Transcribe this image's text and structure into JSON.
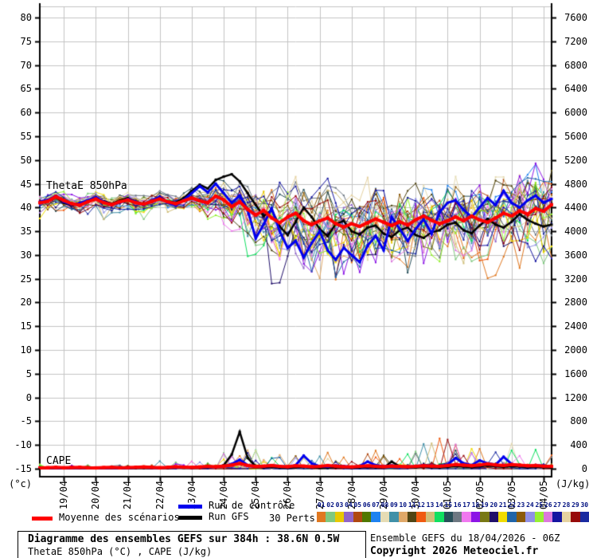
{
  "chart_data": {
    "type": "line",
    "title": "Diagramme des ensembles GEFS sur 384h : 38.6N 0.5W",
    "subtitle": "ThetaE 850hPa (°C) , CAPE (J/kg)",
    "annotations": {
      "thetae_label": "ThetaE 850hPa",
      "cape_label": "CAPE"
    },
    "grid": true,
    "x_axis": {
      "dates": [
        "19/04",
        "20/04",
        "21/04",
        "22/04",
        "23/04",
        "24/04",
        "25/04",
        "26/04",
        "27/04",
        "28/04",
        "29/04",
        "30/04",
        "01/05",
        "02/05",
        "03/05",
        "04/05"
      ],
      "span_hours": 384,
      "step_hours": 6
    },
    "y_left": {
      "label": "(°c)",
      "min": -15,
      "max": 80,
      "step": 5,
      "ticks": [
        80,
        75,
        70,
        65,
        60,
        55,
        50,
        45,
        40,
        35,
        30,
        25,
        20,
        15,
        10,
        5,
        0,
        -5,
        -10,
        -15
      ]
    },
    "y_right": {
      "label": "(J/kg)",
      "min": 0,
      "max": 7600,
      "step": 400,
      "ticks": [
        7600,
        7200,
        6800,
        6400,
        6000,
        5600,
        5200,
        4800,
        4400,
        4000,
        3600,
        3200,
        2800,
        2400,
        2000,
        1600,
        1200,
        800,
        400,
        0
      ]
    },
    "series": {
      "mean": {
        "name": "Moyenne des scénarios",
        "color": "#FF0000",
        "thetae": [
          41.0,
          41.3,
          42.3,
          41.5,
          40.8,
          40.5,
          41.2,
          41.8,
          41.0,
          40.6,
          41.2,
          41.6,
          41.0,
          40.7,
          41.3,
          41.8,
          41.2,
          40.8,
          41.4,
          42.0,
          41.4,
          41.0,
          42.4,
          41.6,
          40.2,
          41.2,
          39.6,
          38.4,
          39.4,
          37.8,
          36.8,
          38.0,
          38.8,
          37.2,
          36.4,
          37.2,
          37.8,
          36.6,
          35.9,
          36.6,
          36.0,
          36.8,
          37.6,
          36.9,
          36.2,
          37.0,
          36.3,
          37.4,
          38.2,
          37.3,
          36.6,
          37.2,
          38.0,
          37.2,
          38.2,
          37.4,
          36.9,
          37.8,
          38.8,
          38.2,
          39.3,
          38.6,
          39.8,
          39.2,
          40.6
        ],
        "cape": [
          15,
          18,
          22,
          16,
          20,
          25,
          18,
          15,
          20,
          24,
          18,
          20,
          25,
          30,
          22,
          18,
          25,
          35,
          28,
          22,
          30,
          40,
          35,
          45,
          60,
          90,
          55,
          40,
          45,
          55,
          40,
          35,
          50,
          45,
          35,
          40,
          55,
          45,
          35,
          30,
          40,
          50,
          40,
          35,
          45,
          40,
          35,
          40,
          50,
          45,
          40,
          55,
          70,
          60,
          50,
          65,
          80,
          65,
          55,
          70,
          60,
          50,
          55,
          45,
          40
        ]
      },
      "control": {
        "name": "Run de contrôle",
        "color": "#0000EE",
        "thetae": [
          41.2,
          41.6,
          42.5,
          41.2,
          40.6,
          40.9,
          41.5,
          42.2,
          41.2,
          40.6,
          41.0,
          41.8,
          41.2,
          40.5,
          41.5,
          42.2,
          41.0,
          40.4,
          41.6,
          43.0,
          44.5,
          43.2,
          45.0,
          43.0,
          41.0,
          42.5,
          39.5,
          33.5,
          36.5,
          39.8,
          35.0,
          31.5,
          33.0,
          29.5,
          32.5,
          35.0,
          31.0,
          29.0,
          31.5,
          30.0,
          28.5,
          32.0,
          34.0,
          31.0,
          38.0,
          35.5,
          33.0,
          35.5,
          37.5,
          34.5,
          39.0,
          41.0,
          41.5,
          39.5,
          38.0,
          40.0,
          42.0,
          40.5,
          43.5,
          41.0,
          40.0,
          41.5,
          42.5,
          41.0,
          41.8
        ],
        "cape": [
          10,
          12,
          15,
          10,
          14,
          18,
          12,
          10,
          15,
          18,
          12,
          15,
          20,
          25,
          18,
          15,
          20,
          30,
          22,
          18,
          25,
          35,
          30,
          40,
          80,
          150,
          60,
          35,
          40,
          60,
          45,
          30,
          60,
          220,
          90,
          40,
          35,
          55,
          45,
          30,
          45,
          120,
          60,
          40,
          55,
          45,
          35,
          45,
          60,
          50,
          45,
          70,
          180,
          90,
          60,
          140,
          90,
          70,
          200,
          80,
          55,
          45,
          60,
          50,
          40
        ]
      },
      "gfs": {
        "name": "Run GFS",
        "color": "#000000",
        "thetae": [
          41.0,
          41.4,
          42.2,
          41.0,
          40.4,
          40.8,
          41.4,
          42.0,
          41.3,
          40.8,
          41.5,
          42.0,
          41.2,
          40.6,
          41.2,
          41.9,
          41.3,
          41.0,
          42.0,
          43.5,
          44.8,
          44.0,
          45.8,
          46.5,
          47.0,
          45.5,
          43.0,
          40.5,
          38.2,
          39.5,
          36.0,
          34.2,
          37.0,
          40.0,
          38.0,
          35.5,
          34.0,
          36.5,
          37.2,
          35.0,
          34.3,
          35.8,
          36.2,
          34.5,
          33.8,
          35.2,
          35.8,
          34.2,
          33.6,
          34.8,
          35.2,
          36.4,
          36.8,
          35.2,
          34.6,
          36.2,
          37.6,
          36.4,
          35.8,
          37.0,
          38.6,
          37.4,
          36.6,
          36.0,
          36.4
        ],
        "cape": [
          5,
          8,
          10,
          6,
          8,
          12,
          8,
          6,
          10,
          12,
          8,
          10,
          14,
          18,
          12,
          10,
          14,
          20,
          15,
          12,
          18,
          25,
          30,
          60,
          240,
          620,
          180,
          40,
          25,
          30,
          20,
          15,
          25,
          30,
          20,
          15,
          18,
          25,
          20,
          15,
          20,
          30,
          25,
          18,
          120,
          40,
          25,
          20,
          30,
          25,
          20,
          30,
          45,
          35,
          25,
          40,
          55,
          40,
          30,
          45,
          35,
          25,
          30,
          22,
          18
        ]
      },
      "members": [
        {
          "id": "01",
          "color": "#E07820",
          "seed": 1077
        },
        {
          "id": "02",
          "color": "#7FC87F",
          "seed": 1154
        },
        {
          "id": "03",
          "color": "#E8C800",
          "seed": 1231
        },
        {
          "id": "04",
          "color": "#9064C8",
          "seed": 1308
        },
        {
          "id": "05",
          "color": "#B04810",
          "seed": 1385
        },
        {
          "id": "06",
          "color": "#507800",
          "seed": 1462
        },
        {
          "id": "07",
          "color": "#1E82F0",
          "seed": 1539
        },
        {
          "id": "08",
          "color": "#E6DCB4",
          "seed": 1616
        },
        {
          "id": "09",
          "color": "#4090A8",
          "seed": 1693
        },
        {
          "id": "10",
          "color": "#E0A868",
          "seed": 1770
        },
        {
          "id": "11",
          "color": "#504514",
          "seed": 1847
        },
        {
          "id": "12",
          "color": "#F05A10",
          "seed": 1924
        },
        {
          "id": "13",
          "color": "#D0BE78",
          "seed": 2001
        },
        {
          "id": "14",
          "color": "#10E060",
          "seed": 2078
        },
        {
          "id": "15",
          "color": "#28505A",
          "seed": 2155
        },
        {
          "id": "16",
          "color": "#6E7882",
          "seed": 2232
        },
        {
          "id": "17",
          "color": "#F078F0",
          "seed": 2309
        },
        {
          "id": "18",
          "color": "#8C14E6",
          "seed": 2386
        },
        {
          "id": "19",
          "color": "#787814",
          "seed": 2463
        },
        {
          "id": "20",
          "color": "#20106A",
          "seed": 2540
        },
        {
          "id": "21",
          "color": "#F0DC00",
          "seed": 2617
        },
        {
          "id": "22",
          "color": "#2064A8",
          "seed": 2694
        },
        {
          "id": "23",
          "color": "#8C5A0A",
          "seed": 2771
        },
        {
          "id": "24",
          "color": "#9090E6",
          "seed": 2848
        },
        {
          "id": "25",
          "color": "#96F032",
          "seed": 2925
        },
        {
          "id": "26",
          "color": "#DC78DC",
          "seed": 3002
        },
        {
          "id": "27",
          "color": "#1414A0",
          "seed": 3079
        },
        {
          "id": "28",
          "color": "#E6D2A0",
          "seed": 3156
        },
        {
          "id": "29",
          "color": "#960A0A",
          "seed": 3233
        },
        {
          "id": "30",
          "color": "#1A2AA0",
          "seed": 3310
        }
      ]
    },
    "member_spread_thetae": [
      1.6,
      1.6,
      1.6,
      1.6,
      1.6,
      1.6,
      1.6,
      1.6,
      1.6,
      1.6,
      1.6,
      1.6,
      1.6,
      1.6,
      1.6,
      1.6,
      1.6,
      1.6,
      1.8,
      2.0,
      2.4,
      2.8,
      3.2,
      3.8,
      4.4,
      5.0,
      5.4,
      5.8,
      6.2,
      6.2,
      6.2,
      6.2,
      6.2,
      6.2,
      6.2,
      6.2,
      6.2,
      6.2,
      6.2,
      6.2,
      6.2,
      6.0,
      6.0,
      6.0,
      6.0,
      6.0,
      6.0,
      6.0,
      6.0,
      6.0,
      6.0,
      6.0,
      6.0,
      6.2,
      6.2,
      6.2,
      6.2,
      6.2,
      6.2,
      6.2,
      7.0,
      7.0,
      6.8,
      6.4,
      6.2
    ],
    "member_cape_amp": [
      25,
      25,
      25,
      25,
      25,
      25,
      25,
      25,
      25,
      25,
      25,
      25,
      25,
      25,
      45,
      45,
      45,
      45,
      45,
      45,
      45,
      45,
      110,
      110,
      110,
      110,
      110,
      110,
      80,
      80,
      80,
      80,
      80,
      80,
      80,
      80,
      80,
      80,
      80,
      80,
      120,
      120,
      120,
      120,
      120,
      120,
      120,
      120,
      170,
      170,
      170,
      170,
      170,
      170,
      170,
      170,
      170,
      170,
      170,
      170,
      130,
      130,
      130,
      130,
      130
    ],
    "colors": {
      "grid": "#C4C4C4",
      "axis": "#000000",
      "mean": "#FF0000",
      "control": "#0000EE",
      "gfs": "#000000"
    }
  },
  "legend": {
    "mean_label": "Moyenne des scénarios",
    "control_label": "Run de contrôle",
    "gfs_label": "Run GFS",
    "perts_label": "30 Perts."
  },
  "footer": {
    "title": "Diagramme des ensembles GEFS sur 384h : 38.6N 0.5W",
    "subtitle": "ThetaE 850hPa (°C) , CAPE (J/kg)",
    "run_info": "Ensemble GEFS du 18/04/2026 - 06Z",
    "copyright": "Copyright 2026 Meteociel.fr"
  }
}
